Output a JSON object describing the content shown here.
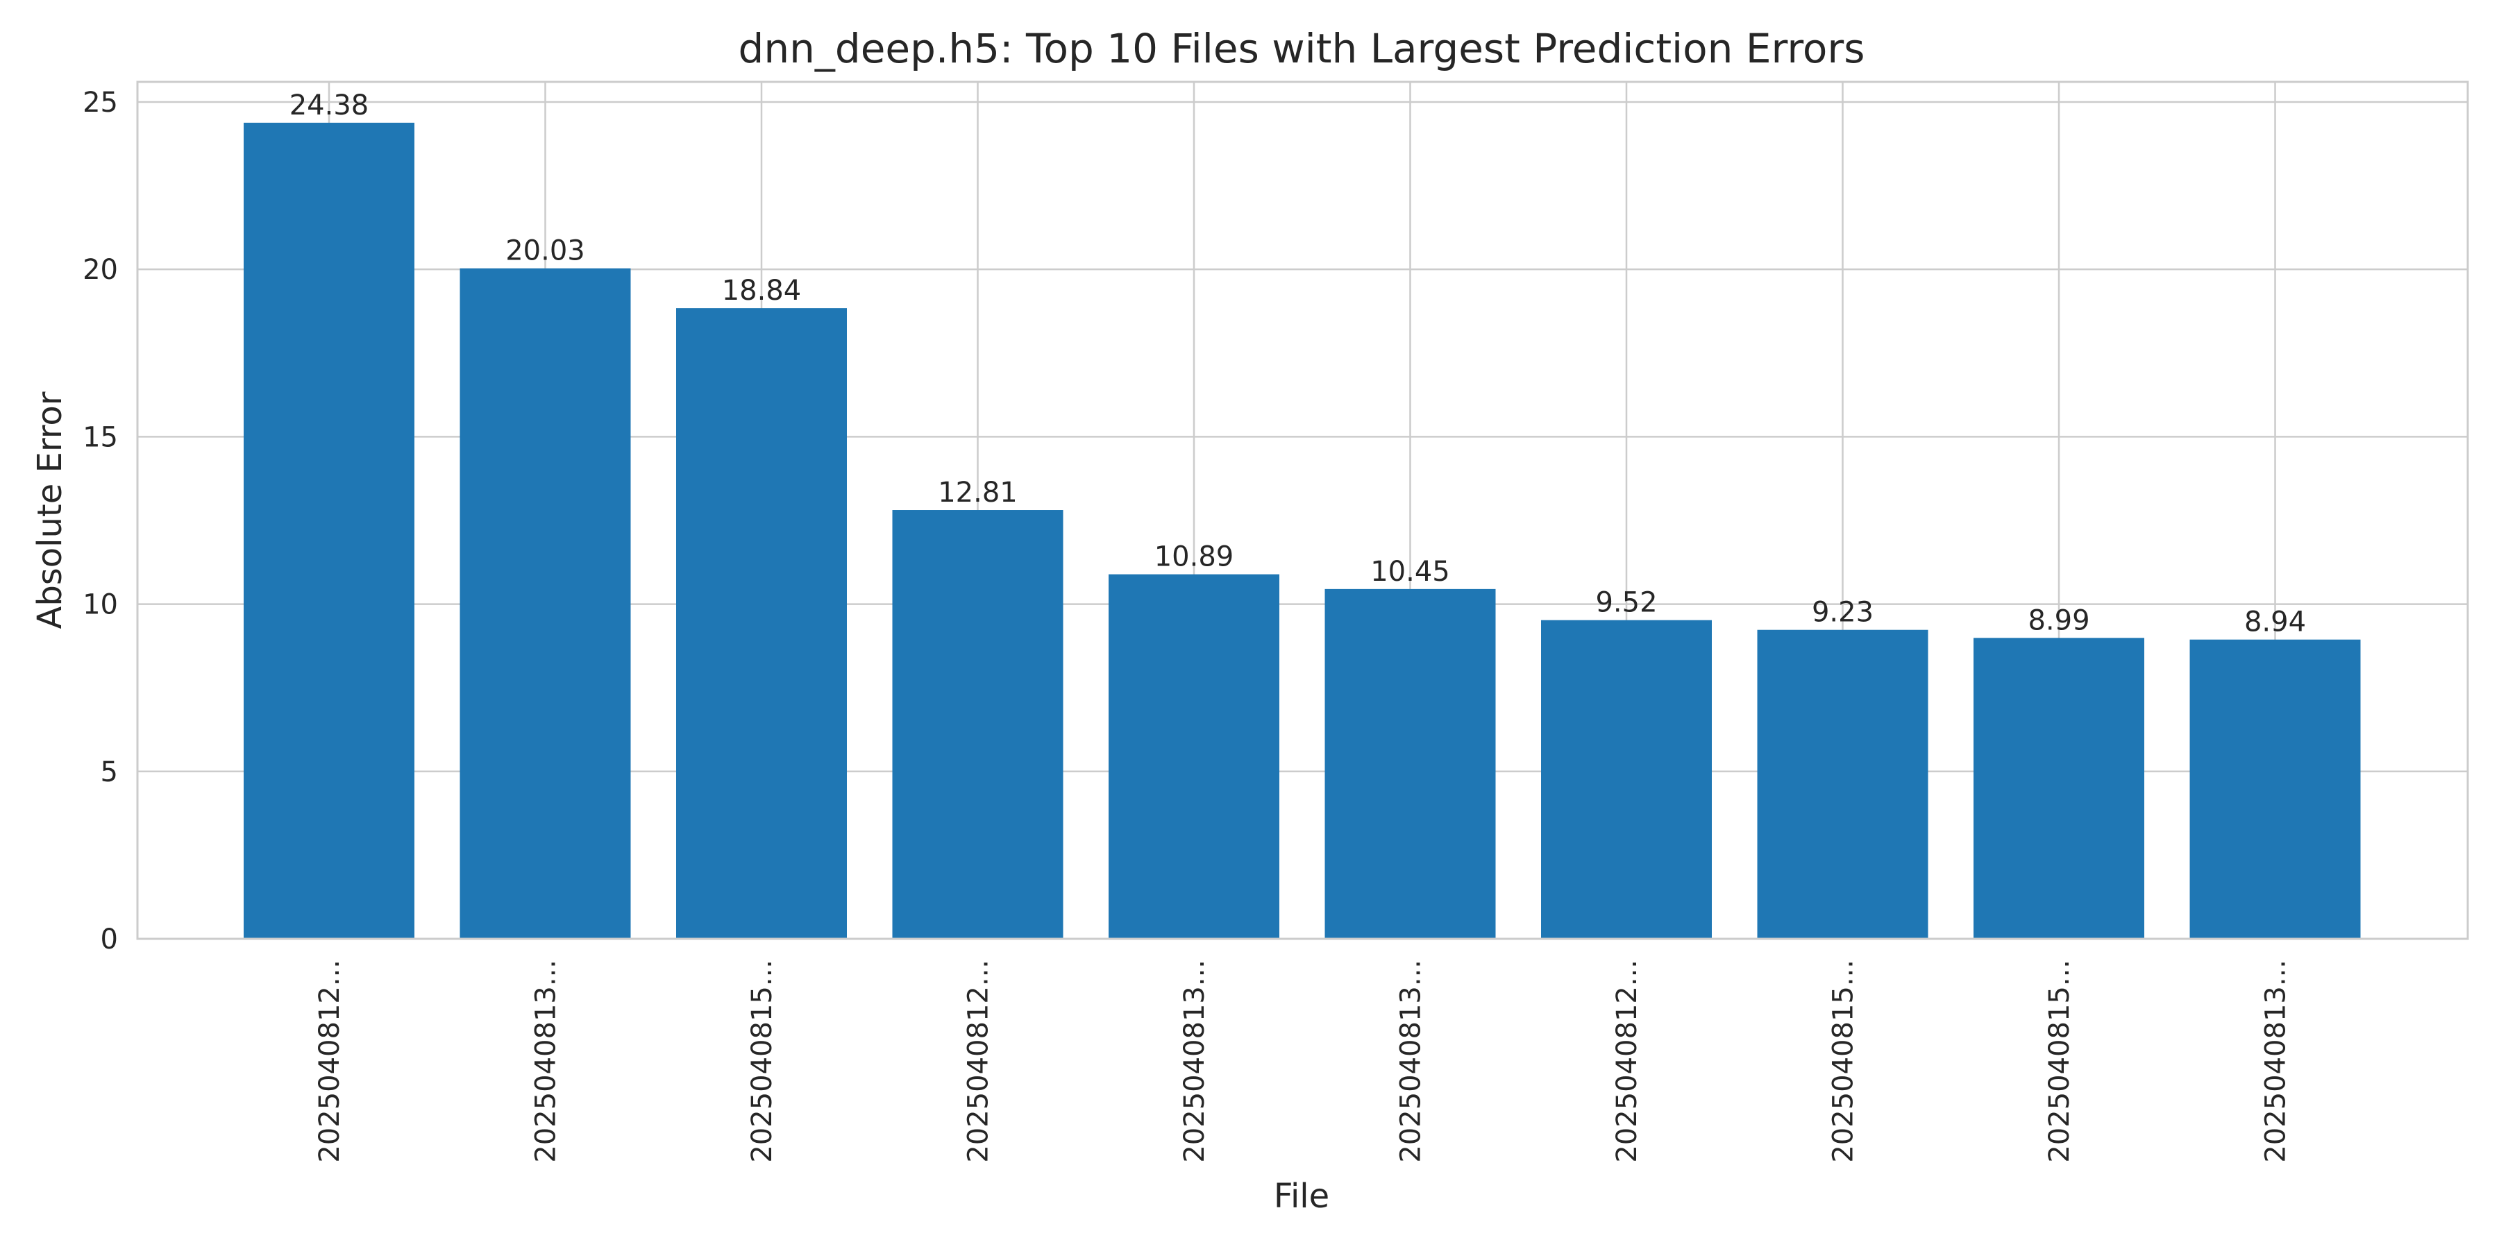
{
  "chart_data": {
    "type": "bar",
    "title": "dnn_deep.h5: Top 10 Files with Largest Prediction Errors",
    "xlabel": "File",
    "ylabel": "Absolute Error",
    "categories": [
      "2025040812...",
      "2025040813...",
      "2025040815...",
      "2025040812...",
      "2025040813...",
      "2025040813...",
      "2025040812...",
      "2025040815...",
      "2025040815...",
      "2025040813..."
    ],
    "values": [
      24.38,
      20.03,
      18.84,
      12.81,
      10.89,
      10.45,
      9.52,
      9.23,
      8.99,
      8.94
    ],
    "value_labels": [
      "24.38",
      "20.03",
      "18.84",
      "12.81",
      "10.89",
      "10.45",
      "9.52",
      "9.23",
      "8.99",
      "8.94"
    ],
    "ylim": [
      0,
      25.6
    ],
    "yticks": [
      0,
      5,
      10,
      15,
      20,
      25
    ],
    "ytick_labels": [
      "0",
      "5",
      "10",
      "15",
      "20",
      "25"
    ],
    "grid": true,
    "bar_color": "#1f77b4",
    "grid_color": "#cccccc"
  }
}
